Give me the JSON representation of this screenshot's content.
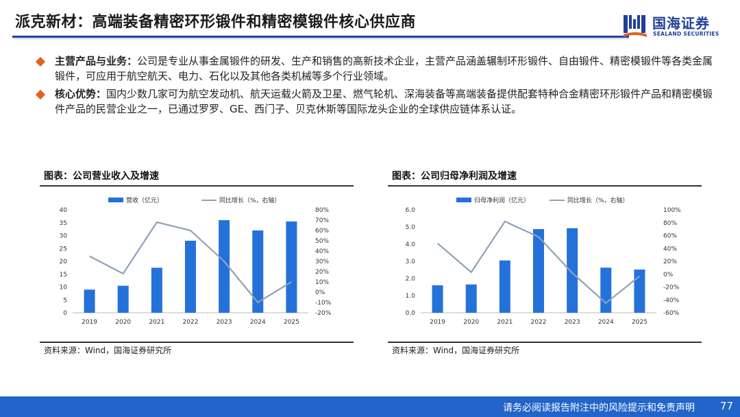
{
  "header": {
    "title": "派克新材：高端装备精密环形锻件和精密模锻件核心供应商",
    "logo_cn": "国海证券",
    "logo_en": "SEALAND SECURITIES"
  },
  "bullets": [
    {
      "label": "主营产品与业务：",
      "text": "公司是专业从事金属锻件的研发、生产和销售的高新技术企业，主营产品涵盖辗制环形锻件、自由锻件、精密模锻件等各类金属锻件，可应用于航空航天、电力、石化以及其他各类机械等多个行业领域。"
    },
    {
      "label": "核心优势：",
      "text": "国内少数几家可为航空发动机、航天运载火箭及卫星、燃气轮机、深海装备等高端装备提供配套特种合金精密环形锻件产品和精密模锻件产品的民营企业之一，已通过罗罗、GE、西门子、贝克休斯等国际龙头企业的全球供应链体系认证。"
    }
  ],
  "charts": {
    "left_title": "图表：公司营业收入及增速",
    "left_source": "资料来源：Wind，国海证券研究所",
    "right_title": "图表：公司归母净利润及增速",
    "right_source": "资料来源：Wind，国海证券研究所"
  },
  "chart_data": [
    {
      "type": "bar",
      "title": "图表：公司营业收入及增速",
      "categories": [
        "2019",
        "2020",
        "2021",
        "2022",
        "2023",
        "2024",
        "2025"
      ],
      "series": [
        {
          "name": "营收（亿元）",
          "kind": "bar",
          "axis": "left",
          "values": [
            9.0,
            10.5,
            17.5,
            28.0,
            36.0,
            32.0,
            35.5
          ]
        },
        {
          "name": "同比增长（%，右轴）",
          "kind": "line",
          "axis": "right",
          "values": [
            35,
            18,
            68,
            60,
            30,
            -10,
            10
          ]
        }
      ],
      "ylim": [
        0,
        40
      ],
      "yticks": [
        "0",
        "5",
        "10",
        "15",
        "20",
        "25",
        "30",
        "35",
        "40"
      ],
      "y2lim": [
        -20,
        80
      ],
      "y2ticks": [
        "-20%",
        "-10%",
        "0%",
        "10%",
        "20%",
        "30%",
        "40%",
        "50%",
        "60%",
        "70%",
        "80%"
      ],
      "colors": {
        "bar": "#2472d9",
        "line": "#8fa1b6"
      }
    },
    {
      "type": "bar",
      "title": "图表：公司归母净利润及增速",
      "categories": [
        "2019",
        "2020",
        "2021",
        "2022",
        "2023",
        "2024",
        "2025"
      ],
      "series": [
        {
          "name": "归母净利润（亿元）",
          "kind": "bar",
          "axis": "left",
          "values": [
            1.6,
            1.65,
            3.05,
            4.88,
            4.93,
            2.63,
            2.52
          ]
        },
        {
          "name": "同比增长（%，右轴）",
          "kind": "line",
          "axis": "right",
          "values": [
            48,
            3,
            82,
            58,
            2,
            -45,
            -3
          ]
        }
      ],
      "ylim": [
        0,
        6
      ],
      "yticks": [
        "0.0",
        "1.0",
        "2.0",
        "3.0",
        "4.0",
        "5.0",
        "6.0"
      ],
      "y2lim": [
        -60,
        100
      ],
      "y2ticks": [
        "-60%",
        "-40%",
        "-20%",
        "0%",
        "20%",
        "40%",
        "60%",
        "80%",
        "100%"
      ],
      "colors": {
        "bar": "#2472d9",
        "line": "#8fa1b6"
      }
    }
  ],
  "footer": {
    "disclaimer": "请务必阅读报告附注中的风险提示和免责声明",
    "page": "77"
  },
  "colors": {
    "brand": "#1f3f99",
    "accent": "#e0621e",
    "footer_bg": "#2264c8"
  }
}
